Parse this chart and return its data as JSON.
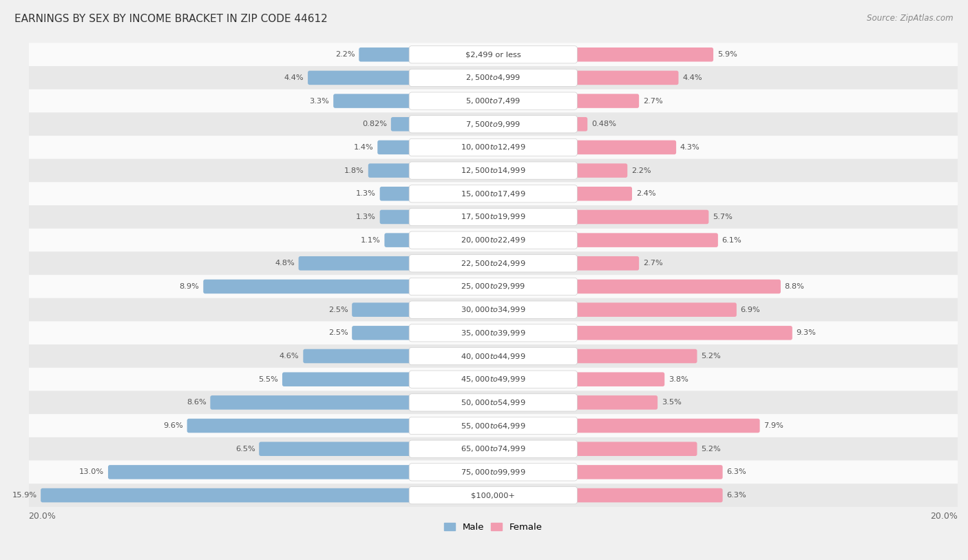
{
  "title": "EARNINGS BY SEX BY INCOME BRACKET IN ZIP CODE 44612",
  "source": "Source: ZipAtlas.com",
  "categories": [
    "$2,499 or less",
    "$2,500 to $4,999",
    "$5,000 to $7,499",
    "$7,500 to $9,999",
    "$10,000 to $12,499",
    "$12,500 to $14,999",
    "$15,000 to $17,499",
    "$17,500 to $19,999",
    "$20,000 to $22,499",
    "$22,500 to $24,999",
    "$25,000 to $29,999",
    "$30,000 to $34,999",
    "$35,000 to $39,999",
    "$40,000 to $44,999",
    "$45,000 to $49,999",
    "$50,000 to $54,999",
    "$55,000 to $64,999",
    "$65,000 to $74,999",
    "$75,000 to $99,999",
    "$100,000+"
  ],
  "male": [
    2.2,
    4.4,
    3.3,
    0.82,
    1.4,
    1.8,
    1.3,
    1.3,
    1.1,
    4.8,
    8.9,
    2.5,
    2.5,
    4.6,
    5.5,
    8.6,
    9.6,
    6.5,
    13.0,
    15.9
  ],
  "female": [
    5.9,
    4.4,
    2.7,
    0.48,
    4.3,
    2.2,
    2.4,
    5.7,
    6.1,
    2.7,
    8.8,
    6.9,
    9.3,
    5.2,
    3.8,
    3.5,
    7.9,
    5.2,
    6.3,
    6.3
  ],
  "male_color": "#8ab4d5",
  "female_color": "#f29cb0",
  "xlim": 20.0,
  "background_color": "#f0f0f0",
  "row_light_color": "#fafafa",
  "row_dark_color": "#e8e8e8",
  "label_box_color": "#ffffff",
  "label_box_border": "#d0d0d0"
}
